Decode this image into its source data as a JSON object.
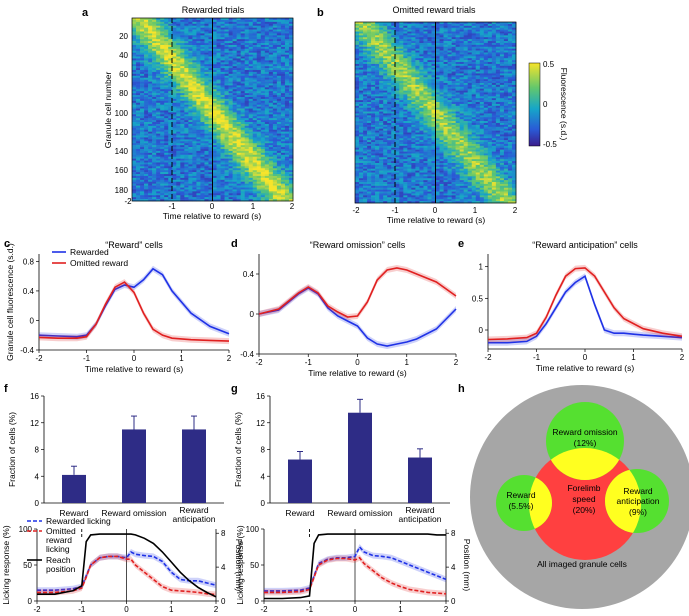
{
  "figure": {
    "panel_labels": [
      "a",
      "b",
      "c",
      "d",
      "e",
      "f",
      "g",
      "h"
    ]
  },
  "chart_data": [
    {
      "id": "a",
      "type": "heatmap",
      "title": "Rewarded trials",
      "xlabel": "Time relative to reward (s)",
      "ylabel": "Granule cell number",
      "xlim": [
        -2,
        2
      ],
      "ylim": [
        1,
        190
      ],
      "xticks": [
        "-2",
        "-1",
        "0",
        "1",
        "2"
      ],
      "yticks": [
        "20",
        "40",
        "60",
        "80",
        "100",
        "120",
        "140",
        "160",
        "180"
      ],
      "markers": [
        {
          "x": -1,
          "style": "dashed"
        },
        {
          "x": 0,
          "style": "solid"
        }
      ]
    },
    {
      "id": "b",
      "type": "heatmap",
      "title": "Omitted reward trials",
      "xlabel": "Time relative to reward (s)",
      "xlim": [
        -2,
        2
      ],
      "ylim": [
        1,
        190
      ],
      "xticks": [
        "-2",
        "-1",
        "0",
        "1",
        "2"
      ],
      "markers": [
        {
          "x": -1,
          "style": "dashed"
        },
        {
          "x": 0,
          "style": "solid"
        }
      ],
      "colorbar": {
        "label": "Fluorescence (s.d.)",
        "ticks": [
          "0.5",
          "0",
          "-0.5"
        ],
        "range": [
          -0.5,
          0.5
        ]
      }
    },
    {
      "id": "c",
      "type": "line",
      "title": "“Reward” cells",
      "xlabel": "Time relative to reward (s)",
      "ylabel": "Granule cell fluorescence (s.d.)",
      "xlim": [
        -2,
        2
      ],
      "ylim": [
        -0.4,
        0.9
      ],
      "xticks": [
        "-2",
        "-1",
        "0",
        "1",
        "2"
      ],
      "yticks": [
        "-0.4",
        "0",
        "0.4",
        "0.8"
      ],
      "legend": [
        {
          "name": "Rewarded",
          "color": "#1f32e6"
        },
        {
          "name": "Omitted reward",
          "color": "#e02020"
        }
      ],
      "x": [
        -2,
        -1.6,
        -1.2,
        -1,
        -0.8,
        -0.6,
        -0.4,
        -0.2,
        0,
        0.2,
        0.4,
        0.6,
        0.8,
        1.2,
        1.6,
        2
      ],
      "series": [
        {
          "name": "Rewarded",
          "color": "#1f32e6",
          "values": [
            -0.2,
            -0.21,
            -0.22,
            -0.2,
            -0.05,
            0.2,
            0.42,
            0.48,
            0.45,
            0.55,
            0.7,
            0.62,
            0.4,
            0.1,
            -0.08,
            -0.18
          ]
        },
        {
          "name": "Omitted reward",
          "color": "#e02020",
          "values": [
            -0.23,
            -0.24,
            -0.24,
            -0.22,
            -0.05,
            0.22,
            0.45,
            0.52,
            0.38,
            0.1,
            -0.12,
            -0.2,
            -0.24,
            -0.26,
            -0.27,
            -0.28
          ]
        }
      ]
    },
    {
      "id": "d",
      "type": "line",
      "title": "“Reward omission” cells",
      "xlabel": "Time relative to reward (s)",
      "xlim": [
        -2,
        2
      ],
      "ylim": [
        -0.4,
        0.6
      ],
      "xticks": [
        "-2",
        "-1",
        "0",
        "1",
        "2"
      ],
      "yticks": [
        "-0.4",
        "0",
        "0.4"
      ],
      "x": [
        -2,
        -1.6,
        -1.4,
        -1.2,
        -1,
        -0.8,
        -0.6,
        -0.4,
        -0.2,
        0,
        0.2,
        0.4,
        0.6,
        0.8,
        1,
        1.2,
        1.6,
        2
      ],
      "series": [
        {
          "name": "Rewarded",
          "color": "#1f32e6",
          "values": [
            0.0,
            0.04,
            0.12,
            0.2,
            0.26,
            0.2,
            0.06,
            -0.02,
            -0.07,
            -0.12,
            -0.24,
            -0.3,
            -0.32,
            -0.3,
            -0.28,
            -0.25,
            -0.15,
            0.05
          ]
        },
        {
          "name": "Omitted reward",
          "color": "#e02020",
          "values": [
            0.0,
            0.05,
            0.13,
            0.21,
            0.27,
            0.21,
            0.08,
            0.02,
            -0.03,
            -0.02,
            0.12,
            0.34,
            0.44,
            0.46,
            0.44,
            0.4,
            0.32,
            0.18
          ]
        }
      ]
    },
    {
      "id": "e",
      "type": "line",
      "title": "“Reward anticipation” cells",
      "xlabel": "Time relative to reward (s)",
      "xlim": [
        -2,
        2
      ],
      "ylim": [
        -0.3,
        1.2
      ],
      "xticks": [
        "-2",
        "-1",
        "0",
        "1",
        "2"
      ],
      "yticks": [
        "0",
        "0.5",
        "1"
      ],
      "x": [
        -2,
        -1.6,
        -1.2,
        -1,
        -0.8,
        -0.6,
        -0.4,
        -0.2,
        0,
        0.2,
        0.4,
        0.6,
        0.8,
        1.2,
        1.6,
        2
      ],
      "series": [
        {
          "name": "Rewarded",
          "color": "#1f32e6",
          "values": [
            -0.2,
            -0.2,
            -0.18,
            -0.1,
            0.1,
            0.35,
            0.6,
            0.75,
            0.85,
            0.4,
            0.0,
            -0.05,
            -0.05,
            -0.08,
            -0.1,
            -0.12
          ]
        },
        {
          "name": "Omitted reward",
          "color": "#e02020",
          "values": [
            -0.15,
            -0.14,
            -0.12,
            -0.05,
            0.2,
            0.55,
            0.85,
            0.97,
            0.98,
            0.85,
            0.6,
            0.35,
            0.18,
            0.02,
            -0.05,
            -0.1
          ]
        }
      ]
    },
    {
      "id": "f",
      "type": "bar",
      "ylabel": "Fraction of cells (%)",
      "ylim": [
        0,
        16
      ],
      "yticks": [
        "0",
        "4",
        "8",
        "12",
        "16"
      ],
      "categories": [
        "Reward",
        "Reward omission",
        "Reward anticipation"
      ],
      "values": [
        4.2,
        11,
        11
      ],
      "errors": [
        1.3,
        2,
        2
      ],
      "color": "#2e2c86"
    },
    {
      "id": "g",
      "type": "bar",
      "ylabel": "Fraction of cells (%)",
      "ylim": [
        0,
        16
      ],
      "yticks": [
        "0",
        "4",
        "8",
        "12",
        "16"
      ],
      "categories": [
        "Reward",
        "Reward omission",
        "Reward anticipation"
      ],
      "values": [
        6.5,
        13.5,
        6.8
      ],
      "errors": [
        1.2,
        2,
        1.3
      ],
      "color": "#2e2c86"
    },
    {
      "id": "f-lick",
      "type": "line",
      "xlabel": "Time relative to reward (s)",
      "ylabel": "Licking response (%)",
      "y2label": "Position (mm)",
      "xlim": [
        -2,
        2
      ],
      "ylim": [
        0,
        100
      ],
      "y2lim": [
        0,
        8.5
      ],
      "xticks": [
        "-2",
        "-1",
        "0",
        "1",
        "2"
      ],
      "yticks": [
        "0",
        "50",
        "100"
      ],
      "y2ticks": [
        "0",
        "4",
        "8"
      ],
      "legend": [
        {
          "name": "Rewarded licking",
          "color": "#1f32e6",
          "style": "dashed"
        },
        {
          "name": "Omitted reward licking",
          "color": "#e02020",
          "style": "dashed"
        },
        {
          "name": "Reach position",
          "color": "#000000",
          "style": "solid"
        }
      ],
      "x": [
        -2,
        -1.6,
        -1.2,
        -1,
        -0.9,
        -0.8,
        -0.6,
        -0.4,
        -0.2,
        0,
        0.1,
        0.2,
        0.4,
        0.6,
        0.8,
        1,
        1.2,
        1.4,
        1.6,
        1.8,
        2
      ],
      "series": [
        {
          "name": "Rewarded licking",
          "color": "#1f32e6",
          "style": "dashed",
          "values": [
            15,
            15,
            17,
            20,
            35,
            50,
            60,
            62,
            62,
            60,
            68,
            65,
            63,
            62,
            55,
            40,
            30,
            28,
            28,
            25,
            22
          ]
        },
        {
          "name": "Omitted reward licking",
          "color": "#e02020",
          "style": "dashed",
          "values": [
            12,
            12,
            14,
            18,
            33,
            50,
            60,
            62,
            62,
            58,
            58,
            50,
            40,
            30,
            20,
            15,
            14,
            13,
            12,
            10,
            9
          ]
        },
        {
          "name": "Reach position",
          "color": "#000000",
          "style": "solid",
          "y2": true,
          "values": [
            0.8,
            0.8,
            1.2,
            1.8,
            7,
            7.8,
            7.9,
            7.9,
            7.9,
            7.9,
            7.9,
            7.8,
            7.4,
            6.8,
            5.8,
            4.6,
            3.4,
            2.4,
            1.6,
            1.0,
            0.5
          ]
        }
      ]
    },
    {
      "id": "g-lick",
      "type": "line",
      "xlabel": "Time relative to reward (s)",
      "ylabel": "Licking response (%)",
      "y2label": "Position (mm)",
      "xlim": [
        -2,
        2
      ],
      "ylim": [
        0,
        100
      ],
      "y2lim": [
        0,
        8.5
      ],
      "xticks": [
        "-2",
        "-1",
        "0",
        "1",
        "2"
      ],
      "yticks": [
        "0",
        "50",
        "100"
      ],
      "y2ticks": [
        "0",
        "4",
        "8"
      ],
      "x": [
        -2,
        -1.6,
        -1.2,
        -1,
        -0.9,
        -0.8,
        -0.6,
        -0.4,
        -0.2,
        0,
        0.1,
        0.2,
        0.4,
        0.6,
        0.8,
        1,
        1.2,
        1.4,
        1.6,
        1.8,
        2
      ],
      "series": [
        {
          "name": "Rewarded licking",
          "color": "#1f32e6",
          "style": "dashed",
          "values": [
            14,
            14,
            15,
            18,
            35,
            52,
            58,
            60,
            60,
            62,
            75,
            68,
            63,
            62,
            60,
            55,
            50,
            45,
            40,
            35,
            30
          ]
        },
        {
          "name": "Omitted reward licking",
          "color": "#e02020",
          "style": "dashed",
          "values": [
            12,
            12,
            13,
            16,
            33,
            50,
            57,
            59,
            59,
            57,
            60,
            52,
            42,
            32,
            25,
            20,
            16,
            14,
            12,
            11,
            10
          ]
        },
        {
          "name": "Reach position",
          "color": "#000000",
          "style": "solid",
          "y2": true,
          "values": [
            0.3,
            0.3,
            0.4,
            0.6,
            6.8,
            7.8,
            7.9,
            7.9,
            7.9,
            7.9,
            7.9,
            7.9,
            7.9,
            7.9,
            7.9,
            7.9,
            7.9,
            7.9,
            7.9,
            7.8,
            7.8
          ]
        }
      ]
    },
    {
      "id": "h",
      "type": "diagram",
      "outer_label": "All imaged granule cells",
      "circles": [
        {
          "id": "omission",
          "label": "Reward omission",
          "value": "(12%)",
          "color": "#55e030"
        },
        {
          "id": "reward",
          "label": "Reward",
          "value": "(5.5%)",
          "color": "#55e030"
        },
        {
          "id": "anticipation",
          "label": "Reward anticipation",
          "value": "(9%)",
          "color": "#55e030"
        },
        {
          "id": "forelimb",
          "label": "Forelimb speed",
          "value": "(20%)",
          "color": "#ff4040"
        }
      ],
      "overlap_color": "#ffff20",
      "outer_color": "#a6a6a6"
    }
  ]
}
